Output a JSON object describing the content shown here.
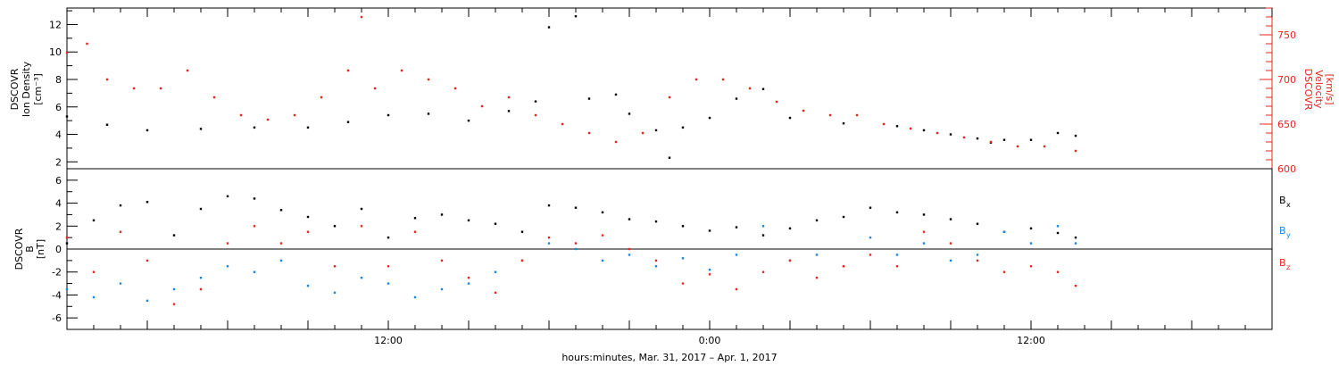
{
  "chart_data": {
    "type": "scatter",
    "xlabel": "hours:minutes, Mar. 31, 2017 – Apr.  1, 2017",
    "x_range": [
      "2017-03-31T00:00",
      "2017-04-01T21:00"
    ],
    "x_ticks": [
      "12:00",
      "0:00",
      "12:00"
    ],
    "panels": [
      {
        "name": "top",
        "ylabel_left": [
          "DSCOVR",
          "Ion Density",
          "[cm⁻³]"
        ],
        "ylabel_right": [
          "DSCOVR",
          "Velocity",
          "[km/s]"
        ],
        "ylim_left": [
          1.5,
          13.2
        ],
        "ylim_right": [
          600,
          780
        ],
        "left_ticks": [
          "2",
          "4",
          "6",
          "8",
          "10",
          "12"
        ],
        "right_ticks": [
          "600",
          "650",
          "700",
          "750"
        ],
        "colors": {
          "density": "#000000",
          "velocity": "#e8261e"
        },
        "series": [
          {
            "name": "Ion Density",
            "axis": "left",
            "color": "#000000",
            "points": [
              [
                "2017-03-31T00:00",
                5.3
              ],
              [
                "2017-03-31T01:30",
                4.7
              ],
              [
                "2017-03-31T03:00",
                4.3
              ],
              [
                "2017-03-31T05:00",
                4.4
              ],
              [
                "2017-03-31T07:00",
                4.5
              ],
              [
                "2017-03-31T09:00",
                4.5
              ],
              [
                "2017-03-31T10:30",
                4.9
              ],
              [
                "2017-03-31T12:00",
                5.4
              ],
              [
                "2017-03-31T13:30",
                5.5
              ],
              [
                "2017-03-31T15:00",
                5.0
              ],
              [
                "2017-03-31T16:30",
                5.7
              ],
              [
                "2017-03-31T17:30",
                6.4
              ],
              [
                "2017-03-31T18:00",
                11.8
              ],
              [
                "2017-03-31T19:00",
                12.6
              ],
              [
                "2017-03-31T19:30",
                6.6
              ],
              [
                "2017-03-31T20:30",
                6.9
              ],
              [
                "2017-03-31T21:00",
                5.5
              ],
              [
                "2017-03-31T22:00",
                4.3
              ],
              [
                "2017-03-31T22:30",
                2.3
              ],
              [
                "2017-03-31T23:00",
                4.5
              ],
              [
                "2017-04-01T00:00",
                5.2
              ],
              [
                "2017-04-01T01:00",
                6.6
              ],
              [
                "2017-04-01T02:00",
                7.3
              ],
              [
                "2017-04-01T03:00",
                5.2
              ],
              [
                "2017-04-01T05:00",
                4.8
              ],
              [
                "2017-04-01T07:00",
                4.6
              ],
              [
                "2017-04-01T08:00",
                4.3
              ],
              [
                "2017-04-01T09:00",
                4.0
              ],
              [
                "2017-04-01T10:00",
                3.7
              ],
              [
                "2017-04-01T10:30",
                3.4
              ],
              [
                "2017-04-01T11:00",
                3.6
              ],
              [
                "2017-04-01T12:00",
                3.6
              ],
              [
                "2017-04-01T13:00",
                4.1
              ],
              [
                "2017-04-01T13:40",
                3.9
              ]
            ]
          },
          {
            "name": "Velocity",
            "axis": "right",
            "color": "#e8261e",
            "points": [
              [
                "2017-03-31T00:00",
                730
              ],
              [
                "2017-03-31T00:45",
                740
              ],
              [
                "2017-03-31T01:30",
                700
              ],
              [
                "2017-03-31T02:30",
                690
              ],
              [
                "2017-03-31T03:30",
                690
              ],
              [
                "2017-03-31T04:30",
                710
              ],
              [
                "2017-03-31T05:30",
                680
              ],
              [
                "2017-03-31T06:30",
                660
              ],
              [
                "2017-03-31T07:30",
                655
              ],
              [
                "2017-03-31T08:30",
                660
              ],
              [
                "2017-03-31T09:30",
                680
              ],
              [
                "2017-03-31T10:30",
                710
              ],
              [
                "2017-03-31T11:00",
                770
              ],
              [
                "2017-03-31T11:30",
                690
              ],
              [
                "2017-03-31T12:30",
                710
              ],
              [
                "2017-03-31T13:30",
                700
              ],
              [
                "2017-03-31T14:30",
                690
              ],
              [
                "2017-03-31T15:30",
                670
              ],
              [
                "2017-03-31T16:30",
                680
              ],
              [
                "2017-03-31T17:30",
                660
              ],
              [
                "2017-03-31T18:30",
                650
              ],
              [
                "2017-03-31T19:30",
                640
              ],
              [
                "2017-03-31T20:30",
                630
              ],
              [
                "2017-03-31T21:30",
                640
              ],
              [
                "2017-03-31T22:30",
                680
              ],
              [
                "2017-03-31T23:30",
                700
              ],
              [
                "2017-04-01T00:30",
                700
              ],
              [
                "2017-04-01T01:30",
                690
              ],
              [
                "2017-04-01T02:30",
                675
              ],
              [
                "2017-04-01T03:30",
                665
              ],
              [
                "2017-04-01T04:30",
                660
              ],
              [
                "2017-04-01T05:30",
                660
              ],
              [
                "2017-04-01T06:30",
                650
              ],
              [
                "2017-04-01T07:30",
                645
              ],
              [
                "2017-04-01T08:30",
                640
              ],
              [
                "2017-04-01T09:30",
                635
              ],
              [
                "2017-04-01T10:30",
                630
              ],
              [
                "2017-04-01T11:30",
                625
              ],
              [
                "2017-04-01T12:30",
                625
              ],
              [
                "2017-04-01T13:40",
                620
              ]
            ]
          }
        ]
      },
      {
        "name": "bottom",
        "ylabel_left": [
          "DSCOVR",
          "B",
          "[nT]"
        ],
        "ylim": [
          -7,
          7
        ],
        "left_ticks": [
          "-6",
          "-4",
          "-2",
          "0",
          "2",
          "4",
          "6"
        ],
        "zero_line": true,
        "legend_placement": "right",
        "series": [
          {
            "name": "Bx",
            "legend_label": "B",
            "legend_sub": "x",
            "color": "#000000",
            "points": [
              [
                "2017-03-31T00:00",
                0.5
              ],
              [
                "2017-03-31T01:00",
                2.5
              ],
              [
                "2017-03-31T02:00",
                3.8
              ],
              [
                "2017-03-31T03:00",
                4.1
              ],
              [
                "2017-03-31T04:00",
                1.2
              ],
              [
                "2017-03-31T05:00",
                3.5
              ],
              [
                "2017-03-31T06:00",
                4.6
              ],
              [
                "2017-03-31T07:00",
                4.4
              ],
              [
                "2017-03-31T08:00",
                3.4
              ],
              [
                "2017-03-31T09:00",
                2.8
              ],
              [
                "2017-03-31T10:00",
                2.0
              ],
              [
                "2017-03-31T11:00",
                3.5
              ],
              [
                "2017-03-31T12:00",
                1.0
              ],
              [
                "2017-03-31T13:00",
                2.7
              ],
              [
                "2017-03-31T14:00",
                3.0
              ],
              [
                "2017-03-31T15:00",
                2.5
              ],
              [
                "2017-03-31T16:00",
                2.2
              ],
              [
                "2017-03-31T17:00",
                1.5
              ],
              [
                "2017-03-31T18:00",
                3.8
              ],
              [
                "2017-03-31T19:00",
                3.6
              ],
              [
                "2017-03-31T20:00",
                3.2
              ],
              [
                "2017-03-31T21:00",
                2.6
              ],
              [
                "2017-03-31T22:00",
                2.4
              ],
              [
                "2017-03-31T23:00",
                2.0
              ],
              [
                "2017-04-01T00:00",
                1.6
              ],
              [
                "2017-04-01T01:00",
                1.9
              ],
              [
                "2017-04-01T02:00",
                1.2
              ],
              [
                "2017-04-01T03:00",
                1.8
              ],
              [
                "2017-04-01T04:00",
                2.5
              ],
              [
                "2017-04-01T05:00",
                2.8
              ],
              [
                "2017-04-01T06:00",
                3.6
              ],
              [
                "2017-04-01T07:00",
                3.2
              ],
              [
                "2017-04-01T08:00",
                3.0
              ],
              [
                "2017-04-01T09:00",
                2.6
              ],
              [
                "2017-04-01T10:00",
                2.2
              ],
              [
                "2017-04-01T11:00",
                1.5
              ],
              [
                "2017-04-01T12:00",
                1.8
              ],
              [
                "2017-04-01T13:00",
                1.4
              ],
              [
                "2017-04-01T13:40",
                1.0
              ]
            ]
          },
          {
            "name": "By",
            "legend_label": "B",
            "legend_sub": "y",
            "color": "#1a86e0",
            "points": [
              [
                "2017-03-31T00:00",
                -3.5
              ],
              [
                "2017-03-31T01:00",
                -4.2
              ],
              [
                "2017-03-31T02:00",
                -3.0
              ],
              [
                "2017-03-31T03:00",
                -4.5
              ],
              [
                "2017-03-31T04:00",
                -3.5
              ],
              [
                "2017-03-31T05:00",
                -2.5
              ],
              [
                "2017-03-31T06:00",
                -1.5
              ],
              [
                "2017-03-31T07:00",
                -2.0
              ],
              [
                "2017-03-31T08:00",
                -1.0
              ],
              [
                "2017-03-31T09:00",
                -3.2
              ],
              [
                "2017-03-31T10:00",
                -3.8
              ],
              [
                "2017-03-31T11:00",
                -2.5
              ],
              [
                "2017-03-31T12:00",
                -3.0
              ],
              [
                "2017-03-31T13:00",
                -4.2
              ],
              [
                "2017-03-31T14:00",
                -3.5
              ],
              [
                "2017-03-31T15:00",
                -3.0
              ],
              [
                "2017-03-31T16:00",
                -2.0
              ],
              [
                "2017-03-31T17:00",
                -1.0
              ],
              [
                "2017-03-31T18:00",
                0.5
              ],
              [
                "2017-03-31T19:00",
                0.0
              ],
              [
                "2017-03-31T20:00",
                -1.0
              ],
              [
                "2017-03-31T21:00",
                -0.5
              ],
              [
                "2017-03-31T22:00",
                -1.5
              ],
              [
                "2017-03-31T23:00",
                -0.8
              ],
              [
                "2017-04-01T00:00",
                -1.8
              ],
              [
                "2017-04-01T01:00",
                -0.5
              ],
              [
                "2017-04-01T02:00",
                2.0
              ],
              [
                "2017-04-01T03:00",
                -1.0
              ],
              [
                "2017-04-01T04:00",
                -0.5
              ],
              [
                "2017-04-01T05:00",
                -1.5
              ],
              [
                "2017-04-01T06:00",
                1.0
              ],
              [
                "2017-04-01T07:00",
                -0.5
              ],
              [
                "2017-04-01T08:00",
                0.5
              ],
              [
                "2017-04-01T09:00",
                -1.0
              ],
              [
                "2017-04-01T10:00",
                -0.5
              ],
              [
                "2017-04-01T11:00",
                1.5
              ],
              [
                "2017-04-01T12:00",
                0.5
              ],
              [
                "2017-04-01T13:00",
                2.0
              ],
              [
                "2017-04-01T13:40",
                0.5
              ]
            ]
          },
          {
            "name": "Bz",
            "legend_label": "B",
            "legend_sub": "z",
            "color": "#e8261e",
            "points": [
              [
                "2017-03-31T00:00",
                1.0
              ],
              [
                "2017-03-31T01:00",
                -2.0
              ],
              [
                "2017-03-31T02:00",
                1.5
              ],
              [
                "2017-03-31T03:00",
                -1.0
              ],
              [
                "2017-03-31T04:00",
                -4.8
              ],
              [
                "2017-03-31T05:00",
                -3.5
              ],
              [
                "2017-03-31T06:00",
                0.5
              ],
              [
                "2017-03-31T07:00",
                2.0
              ],
              [
                "2017-03-31T08:00",
                0.5
              ],
              [
                "2017-03-31T09:00",
                1.5
              ],
              [
                "2017-03-31T10:00",
                -1.5
              ],
              [
                "2017-03-31T11:00",
                2.0
              ],
              [
                "2017-03-31T12:00",
                -1.5
              ],
              [
                "2017-03-31T13:00",
                1.5
              ],
              [
                "2017-03-31T14:00",
                -1.0
              ],
              [
                "2017-03-31T15:00",
                -2.5
              ],
              [
                "2017-03-31T16:00",
                -3.8
              ],
              [
                "2017-03-31T17:00",
                -1.0
              ],
              [
                "2017-03-31T18:00",
                1.0
              ],
              [
                "2017-03-31T19:00",
                0.5
              ],
              [
                "2017-03-31T20:00",
                1.2
              ],
              [
                "2017-03-31T21:00",
                0.0
              ],
              [
                "2017-03-31T22:00",
                -1.0
              ],
              [
                "2017-03-31T23:00",
                -3.0
              ],
              [
                "2017-04-01T00:00",
                -2.2
              ],
              [
                "2017-04-01T01:00",
                -3.5
              ],
              [
                "2017-04-01T02:00",
                -2.0
              ],
              [
                "2017-04-01T03:00",
                -1.0
              ],
              [
                "2017-04-01T04:00",
                -2.5
              ],
              [
                "2017-04-01T05:00",
                -1.5
              ],
              [
                "2017-04-01T06:00",
                -0.5
              ],
              [
                "2017-04-01T07:00",
                -1.5
              ],
              [
                "2017-04-01T08:00",
                1.5
              ],
              [
                "2017-04-01T09:00",
                0.5
              ],
              [
                "2017-04-01T10:00",
                -1.0
              ],
              [
                "2017-04-01T11:00",
                -2.0
              ],
              [
                "2017-04-01T12:00",
                -1.5
              ],
              [
                "2017-04-01T13:00",
                -2.0
              ],
              [
                "2017-04-01T13:40",
                -3.2
              ]
            ]
          }
        ]
      }
    ]
  }
}
